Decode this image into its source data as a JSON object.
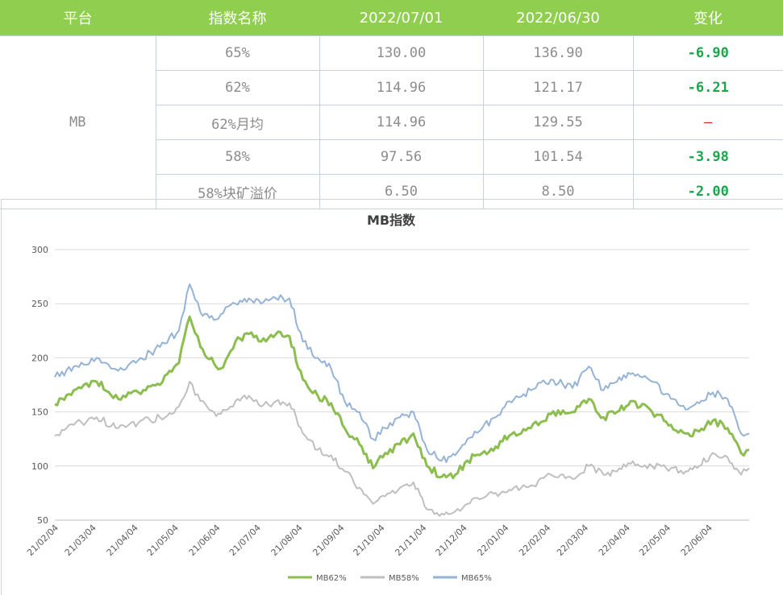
{
  "table": {
    "headers": [
      "平台",
      "指数名称",
      "2022/07/01",
      "2022/06/30",
      "变化"
    ],
    "platform": "MB",
    "rows": [
      {
        "name": "65%",
        "d1": "130.00",
        "d2": "136.90",
        "change": "-6.90"
      },
      {
        "name": "62%",
        "d1": "114.96",
        "d2": "121.17",
        "change": "-6.21"
      },
      {
        "name": "62%月均",
        "d1": "114.96",
        "d2": "129.55",
        "change": "–"
      },
      {
        "name": "58%",
        "d1": "97.56",
        "d2": "101.54",
        "change": "-3.98"
      },
      {
        "name": "58%块矿溢价",
        "d1": "6.50",
        "d2": "8.50",
        "change": "-2.00"
      }
    ],
    "colors": {
      "header_bg": "#8fce4e",
      "change_green": "#1aa64a",
      "dash_red": "#d02020"
    }
  },
  "chart_data": {
    "type": "line",
    "title": "MB指数",
    "x_ticks": [
      "21/02/04",
      "21/03/04",
      "21/04/04",
      "21/05/04",
      "21/06/04",
      "21/07/04",
      "21/08/04",
      "21/09/04",
      "21/10/04",
      "21/11/04",
      "21/12/04",
      "22/01/04",
      "22/02/04",
      "22/03/04",
      "22/04/04",
      "22/05/04",
      "22/06/04"
    ],
    "x_range": [
      "21/02/01",
      "22/07/01"
    ],
    "ylim": [
      50,
      300
    ],
    "y_ticks": [
      50,
      100,
      150,
      200,
      250,
      300
    ],
    "grid": true,
    "legend_position": "bottom",
    "series": [
      {
        "name": "MB62%",
        "color": "#8cbd4f",
        "points": [
          [
            "21/02/01",
            157
          ],
          [
            "21/02/15",
            170
          ],
          [
            "21/03/04",
            178
          ],
          [
            "21/03/20",
            162
          ],
          [
            "21/04/04",
            168
          ],
          [
            "21/04/20",
            175
          ],
          [
            "21/05/04",
            195
          ],
          [
            "21/05/12",
            238
          ],
          [
            "21/05/20",
            210
          ],
          [
            "21/05/30",
            195
          ],
          [
            "21/06/04",
            190
          ],
          [
            "21/06/15",
            215
          ],
          [
            "21/06/25",
            222
          ],
          [
            "21/07/04",
            215
          ],
          [
            "21/07/15",
            222
          ],
          [
            "21/07/25",
            220
          ],
          [
            "21/08/04",
            180
          ],
          [
            "21/08/15",
            165
          ],
          [
            "21/08/25",
            158
          ],
          [
            "21/09/04",
            135
          ],
          [
            "21/09/15",
            120
          ],
          [
            "21/09/25",
            98
          ],
          [
            "21/10/04",
            112
          ],
          [
            "21/10/15",
            120
          ],
          [
            "21/10/25",
            130
          ],
          [
            "21/11/04",
            100
          ],
          [
            "21/11/15",
            90
          ],
          [
            "21/11/25",
            92
          ],
          [
            "21/12/04",
            105
          ],
          [
            "21/12/15",
            112
          ],
          [
            "21/12/25",
            118
          ],
          [
            "22/01/04",
            128
          ],
          [
            "22/01/20",
            135
          ],
          [
            "22/02/04",
            148
          ],
          [
            "22/02/20",
            150
          ],
          [
            "22/03/04",
            162
          ],
          [
            "22/03/15",
            145
          ],
          [
            "22/03/25",
            150
          ],
          [
            "22/04/04",
            160
          ],
          [
            "22/04/20",
            150
          ],
          [
            "22/05/04",
            138
          ],
          [
            "22/05/15",
            130
          ],
          [
            "22/05/25",
            132
          ],
          [
            "22/06/04",
            142
          ],
          [
            "22/06/15",
            135
          ],
          [
            "22/06/25",
            112
          ],
          [
            "22/07/01",
            115
          ]
        ]
      },
      {
        "name": "MB58%",
        "color": "#bfbfbf",
        "points": [
          [
            "21/02/01",
            128
          ],
          [
            "21/02/15",
            138
          ],
          [
            "21/03/04",
            145
          ],
          [
            "21/03/20",
            135
          ],
          [
            "21/04/04",
            140
          ],
          [
            "21/04/20",
            145
          ],
          [
            "21/05/04",
            155
          ],
          [
            "21/05/12",
            178
          ],
          [
            "21/05/20",
            160
          ],
          [
            "21/05/30",
            150
          ],
          [
            "21/06/04",
            148
          ],
          [
            "21/06/15",
            160
          ],
          [
            "21/06/25",
            165
          ],
          [
            "21/07/04",
            155
          ],
          [
            "21/07/15",
            160
          ],
          [
            "21/07/25",
            158
          ],
          [
            "21/08/04",
            130
          ],
          [
            "21/08/15",
            115
          ],
          [
            "21/08/25",
            110
          ],
          [
            "21/09/04",
            95
          ],
          [
            "21/09/15",
            80
          ],
          [
            "21/09/25",
            65
          ],
          [
            "21/10/04",
            72
          ],
          [
            "21/10/15",
            80
          ],
          [
            "21/10/25",
            85
          ],
          [
            "21/11/04",
            60
          ],
          [
            "21/11/15",
            56
          ],
          [
            "21/11/25",
            58
          ],
          [
            "21/12/04",
            65
          ],
          [
            "21/12/15",
            70
          ],
          [
            "21/12/25",
            75
          ],
          [
            "22/01/04",
            78
          ],
          [
            "22/01/20",
            82
          ],
          [
            "22/02/04",
            92
          ],
          [
            "22/02/20",
            88
          ],
          [
            "22/03/04",
            100
          ],
          [
            "22/03/15",
            92
          ],
          [
            "22/03/25",
            95
          ],
          [
            "22/04/04",
            102
          ],
          [
            "22/04/20",
            100
          ],
          [
            "22/05/04",
            98
          ],
          [
            "22/05/15",
            95
          ],
          [
            "22/05/25",
            100
          ],
          [
            "22/06/04",
            112
          ],
          [
            "22/06/15",
            108
          ],
          [
            "22/06/25",
            92
          ],
          [
            "22/07/01",
            98
          ]
        ]
      },
      {
        "name": "MB65%",
        "color": "#95b3d7",
        "points": [
          [
            "21/02/01",
            182
          ],
          [
            "21/02/15",
            192
          ],
          [
            "21/03/04",
            200
          ],
          [
            "21/03/20",
            188
          ],
          [
            "21/04/04",
            198
          ],
          [
            "21/04/20",
            210
          ],
          [
            "21/05/04",
            225
          ],
          [
            "21/05/12",
            268
          ],
          [
            "21/05/20",
            242
          ],
          [
            "21/05/30",
            235
          ],
          [
            "21/06/04",
            240
          ],
          [
            "21/06/15",
            250
          ],
          [
            "21/06/25",
            255
          ],
          [
            "21/07/04",
            250
          ],
          [
            "21/07/15",
            255
          ],
          [
            "21/07/25",
            255
          ],
          [
            "21/08/04",
            215
          ],
          [
            "21/08/15",
            200
          ],
          [
            "21/08/25",
            190
          ],
          [
            "21/09/04",
            160
          ],
          [
            "21/09/15",
            150
          ],
          [
            "21/09/25",
            125
          ],
          [
            "21/10/04",
            135
          ],
          [
            "21/10/15",
            145
          ],
          [
            "21/10/25",
            150
          ],
          [
            "21/11/04",
            115
          ],
          [
            "21/11/15",
            105
          ],
          [
            "21/11/25",
            110
          ],
          [
            "21/12/04",
            125
          ],
          [
            "21/12/15",
            135
          ],
          [
            "21/12/25",
            145
          ],
          [
            "22/01/04",
            160
          ],
          [
            "22/01/20",
            170
          ],
          [
            "22/02/04",
            180
          ],
          [
            "22/02/20",
            172
          ],
          [
            "22/03/04",
            192
          ],
          [
            "22/03/15",
            170
          ],
          [
            "22/03/25",
            178
          ],
          [
            "22/04/04",
            185
          ],
          [
            "22/04/20",
            178
          ],
          [
            "22/05/04",
            162
          ],
          [
            "22/05/15",
            152
          ],
          [
            "22/05/25",
            158
          ],
          [
            "22/06/04",
            168
          ],
          [
            "22/06/15",
            162
          ],
          [
            "22/06/25",
            130
          ],
          [
            "22/07/01",
            130
          ]
        ]
      }
    ]
  }
}
